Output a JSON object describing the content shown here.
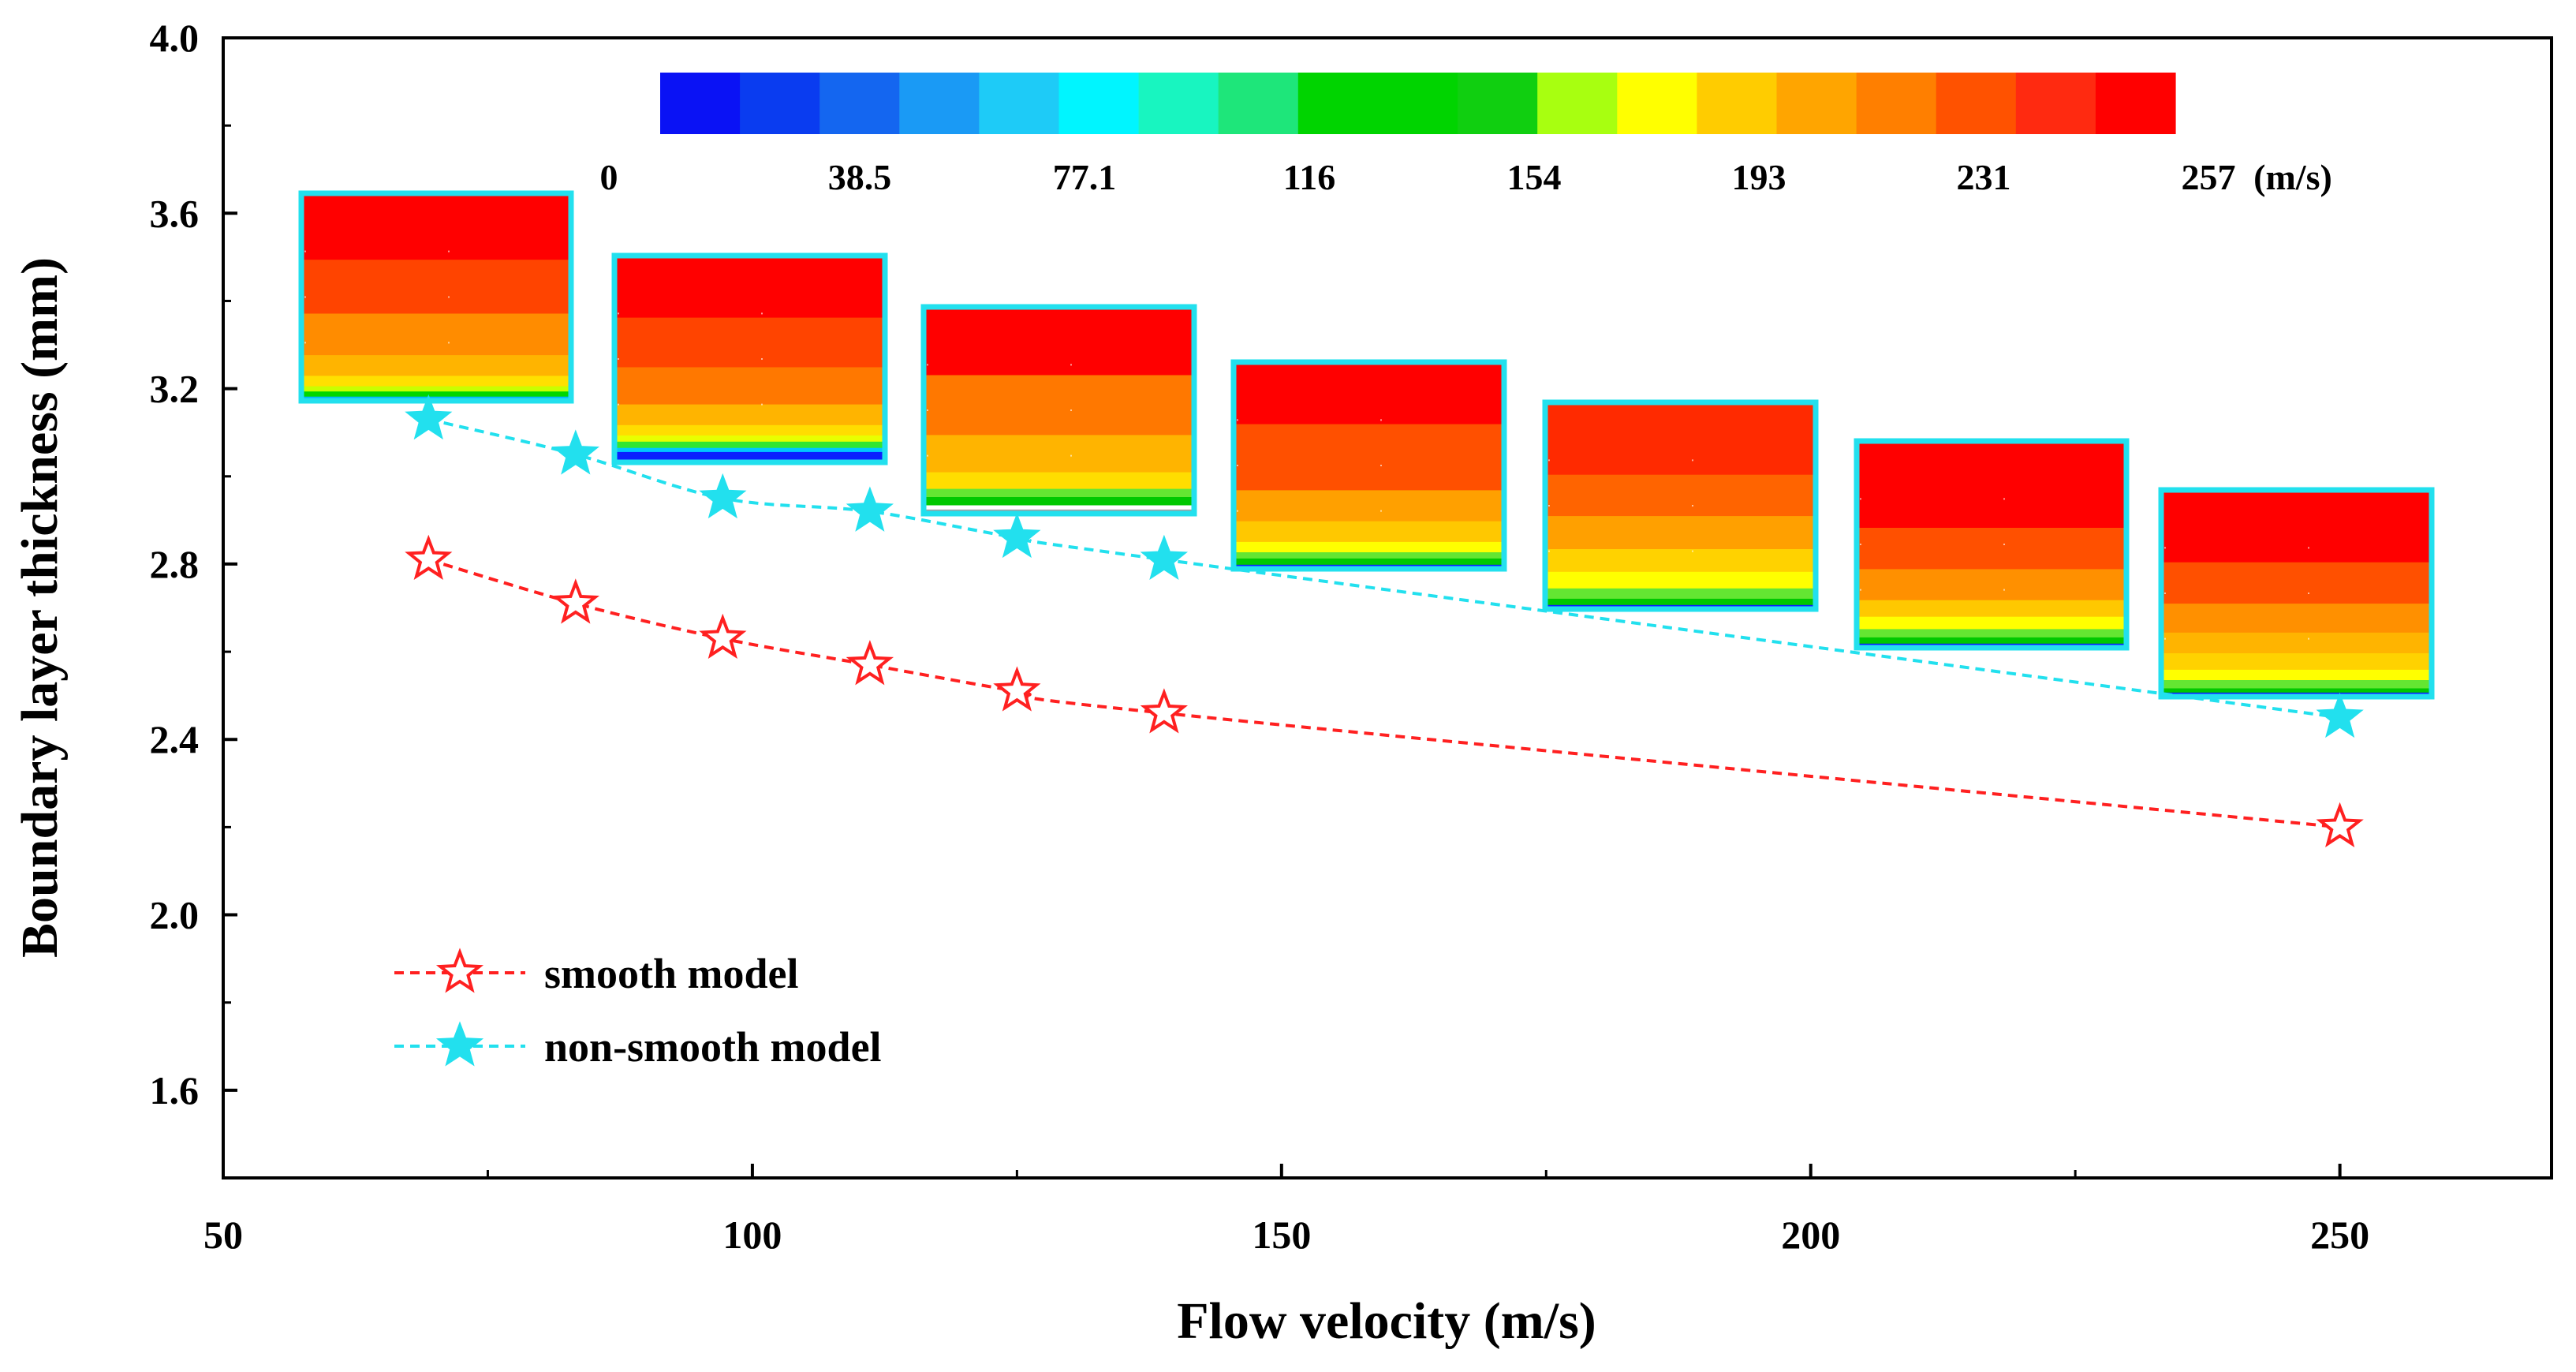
{
  "chart_data": {
    "type": "line",
    "xlabel": "Flow velocity (m/s)",
    "ylabel": "Boundary layer thickness (mm)",
    "xlim": [
      50,
      270
    ],
    "ylim": [
      1.4,
      4.0
    ],
    "xticks": [
      50,
      100,
      150,
      200,
      250
    ],
    "yticks": [
      1.6,
      2.0,
      2.4,
      2.8,
      3.2,
      3.6,
      4.0
    ],
    "xtick_labels": [
      "50",
      "100",
      "150",
      "200",
      "250"
    ],
    "ytick_labels": [
      "1.6",
      "2.0",
      "2.4",
      "2.8",
      "3.2",
      "3.6",
      "4.0"
    ],
    "series": [
      {
        "name": "smooth model",
        "color": "#ff2020",
        "marker": "open-star",
        "x": [
          69.4,
          83.3,
          97.2,
          111.1,
          125.0,
          138.9,
          250.0
        ],
        "values": [
          2.81,
          2.71,
          2.63,
          2.57,
          2.51,
          2.46,
          2.2
        ]
      },
      {
        "name": "non-smooth model",
        "color": "#22e0ee",
        "marker": "filled-star",
        "x": [
          69.4,
          83.3,
          97.2,
          111.1,
          125.0,
          138.9,
          250.0
        ],
        "values": [
          3.13,
          3.05,
          2.95,
          2.92,
          2.86,
          2.81,
          2.45
        ]
      }
    ],
    "legend": {
      "position": "bottom-left",
      "entries": [
        "smooth model",
        "non-smooth model"
      ]
    },
    "colorbar": {
      "tick_labels": [
        "0",
        "38.5",
        "77.1",
        "116",
        "154",
        "193",
        "231",
        "257"
      ],
      "unit": "(m/s)",
      "colors": [
        "#0a12f5",
        "#0a3cf0",
        "#1466f0",
        "#1a9af5",
        "#1ecbf7",
        "#00f5ff",
        "#18f5c0",
        "#1ee67a",
        "#00d400",
        "#00d400",
        "#10cf10",
        "#a8ff10",
        "#ffff00",
        "#ffcc00",
        "#ffa500",
        "#ff7f00",
        "#ff5200",
        "#ff2a10",
        "#ff0000"
      ]
    },
    "insets": [
      {
        "label": "contour-69",
        "bands": [
          [
            "#ff0000",
            0.32
          ],
          [
            "#ff4400",
            0.26
          ],
          [
            "#ff8c00",
            0.2
          ],
          [
            "#ffb400",
            0.1
          ],
          [
            "#ffe000",
            0.05
          ],
          [
            "#c8ff00",
            0.025
          ],
          [
            "#00d700",
            0.025
          ],
          [
            "#00b4ff",
            0.01
          ],
          [
            "#0a20ff",
            0.01
          ]
        ]
      },
      {
        "label": "contour-97",
        "bands": [
          [
            "#ff0000",
            0.3
          ],
          [
            "#ff4400",
            0.24
          ],
          [
            "#ff7800",
            0.18
          ],
          [
            "#ffb400",
            0.1
          ],
          [
            "#ffdd00",
            0.05
          ],
          [
            "#e8ff00",
            0.03
          ],
          [
            "#32e632",
            0.03
          ],
          [
            "#00c8ff",
            0.02
          ],
          [
            "#0a20ff",
            0.05
          ]
        ]
      },
      {
        "label": "contour-111",
        "bands": [
          [
            "#ff0000",
            0.33
          ],
          [
            "#ff7800",
            0.29
          ],
          [
            "#ffb400",
            0.18
          ],
          [
            "#ffdd00",
            0.08
          ],
          [
            "#64e632",
            0.04
          ],
          [
            "#00c800",
            0.04
          ],
          [
            "#ffffff",
            0.02
          ],
          [
            "#a0a0a0",
            0.02
          ]
        ]
      },
      {
        "label": "contour-125",
        "bands": [
          [
            "#ff0000",
            0.3
          ],
          [
            "#ff5000",
            0.32
          ],
          [
            "#ffa000",
            0.15
          ],
          [
            "#ffc800",
            0.1
          ],
          [
            "#ffff00",
            0.05
          ],
          [
            "#64e632",
            0.03
          ],
          [
            "#00c800",
            0.03
          ],
          [
            "#0a20ff",
            0.02
          ]
        ]
      },
      {
        "label": "contour-138",
        "bands": [
          [
            "#ff2a00",
            0.35
          ],
          [
            "#ff6400",
            0.2
          ],
          [
            "#ffa000",
            0.16
          ],
          [
            "#ffd200",
            0.11
          ],
          [
            "#ffff00",
            0.08
          ],
          [
            "#64e632",
            0.05
          ],
          [
            "#00c800",
            0.03
          ],
          [
            "#0a20ff",
            0.02
          ]
        ]
      },
      {
        "label": "contour-152",
        "bands": [
          [
            "#ff0000",
            0.42
          ],
          [
            "#ff5000",
            0.2
          ],
          [
            "#ff9000",
            0.15
          ],
          [
            "#ffc800",
            0.08
          ],
          [
            "#ffff00",
            0.06
          ],
          [
            "#64e632",
            0.04
          ],
          [
            "#00c800",
            0.03
          ],
          [
            "#0a20ff",
            0.02
          ]
        ]
      },
      {
        "label": "contour-250",
        "bands": [
          [
            "#ff0000",
            0.35
          ],
          [
            "#ff5000",
            0.2
          ],
          [
            "#ff9000",
            0.14
          ],
          [
            "#ffb400",
            0.1
          ],
          [
            "#ffd200",
            0.08
          ],
          [
            "#ffff00",
            0.05
          ],
          [
            "#64e632",
            0.04
          ],
          [
            "#00c800",
            0.02
          ],
          [
            "#0a20ff",
            0.02
          ]
        ]
      }
    ]
  }
}
